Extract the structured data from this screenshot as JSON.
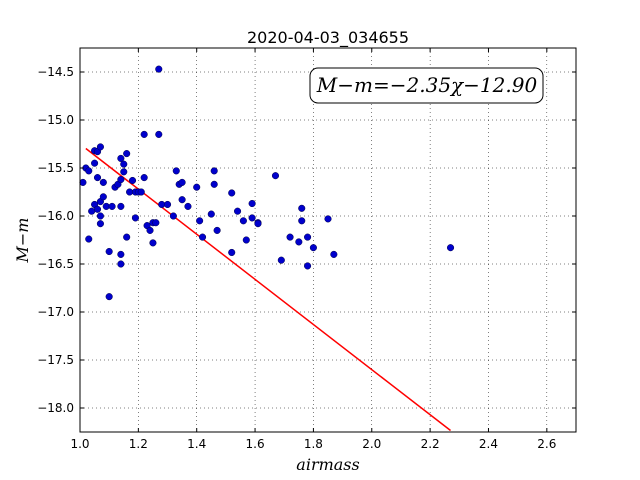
{
  "chart_data": {
    "type": "scatter",
    "title": "2020-04-03_034655",
    "xlabel": "airmass",
    "ylabel": "M−m",
    "xlim": [
      1.0,
      2.7
    ],
    "ylim": [
      -18.25,
      -14.25
    ],
    "xticks": [
      1.0,
      1.2,
      1.4,
      1.6,
      1.8,
      2.0,
      2.2,
      2.4,
      2.6
    ],
    "xtick_labels": [
      "1.0",
      "1.2",
      "1.4",
      "1.6",
      "1.8",
      "2.0",
      "2.2",
      "2.4",
      "2.6"
    ],
    "yticks": [
      -14.5,
      -15.0,
      -15.5,
      -16.0,
      -16.5,
      -17.0,
      -17.5,
      -18.0
    ],
    "ytick_labels": [
      "−14.5",
      "−15.0",
      "−15.5",
      "−16.0",
      "−16.5",
      "−17.0",
      "−17.5",
      "−18.0"
    ],
    "grid": true,
    "annotation": "M−m=−2.35χ−12.90",
    "annotation_position": "top-right",
    "point_color": "#0000cc",
    "line_color": "#ff0000",
    "fit": {
      "slope": -2.35,
      "intercept": -12.9,
      "x_range": [
        1.02,
        2.27
      ]
    },
    "points": [
      [
        1.01,
        -15.65
      ],
      [
        1.02,
        -15.5
      ],
      [
        1.03,
        -15.53
      ],
      [
        1.04,
        -15.95
      ],
      [
        1.03,
        -16.24
      ],
      [
        1.05,
        -15.32
      ],
      [
        1.06,
        -15.33
      ],
      [
        1.05,
        -15.45
      ],
      [
        1.07,
        -15.28
      ],
      [
        1.05,
        -15.88
      ],
      [
        1.06,
        -15.93
      ],
      [
        1.07,
        -15.85
      ],
      [
        1.06,
        -15.6
      ],
      [
        1.08,
        -15.8
      ],
      [
        1.08,
        -15.65
      ],
      [
        1.07,
        -16.0
      ],
      [
        1.07,
        -16.08
      ],
      [
        1.09,
        -15.9
      ],
      [
        1.11,
        -15.9
      ],
      [
        1.12,
        -15.7
      ],
      [
        1.13,
        -15.67
      ],
      [
        1.14,
        -15.62
      ],
      [
        1.14,
        -15.9
      ],
      [
        1.14,
        -15.4
      ],
      [
        1.15,
        -15.46
      ],
      [
        1.15,
        -15.54
      ],
      [
        1.16,
        -15.35
      ],
      [
        1.17,
        -15.75
      ],
      [
        1.18,
        -15.63
      ],
      [
        1.19,
        -15.75
      ],
      [
        1.2,
        -15.75
      ],
      [
        1.21,
        -15.75
      ],
      [
        1.19,
        -16.02
      ],
      [
        1.16,
        -16.22
      ],
      [
        1.14,
        -16.4
      ],
      [
        1.14,
        -16.5
      ],
      [
        1.1,
        -16.37
      ],
      [
        1.1,
        -16.84
      ],
      [
        1.22,
        -15.15
      ],
      [
        1.22,
        -15.6
      ],
      [
        1.23,
        -16.1
      ],
      [
        1.24,
        -16.15
      ],
      [
        1.25,
        -16.07
      ],
      [
        1.26,
        -16.07
      ],
      [
        1.25,
        -16.28
      ],
      [
        1.27,
        -15.15
      ],
      [
        1.28,
        -15.88
      ],
      [
        1.3,
        -15.88
      ],
      [
        1.32,
        -16.0
      ],
      [
        1.33,
        -15.53
      ],
      [
        1.34,
        -15.67
      ],
      [
        1.35,
        -15.65
      ],
      [
        1.35,
        -15.83
      ],
      [
        1.37,
        -15.9
      ],
      [
        1.27,
        -14.47
      ],
      [
        1.4,
        -15.7
      ],
      [
        1.41,
        -16.05
      ],
      [
        1.42,
        -16.22
      ],
      [
        1.45,
        -15.98
      ],
      [
        1.46,
        -15.53
      ],
      [
        1.46,
        -15.67
      ],
      [
        1.47,
        -16.15
      ],
      [
        1.52,
        -15.76
      ],
      [
        1.52,
        -16.38
      ],
      [
        1.54,
        -15.95
      ],
      [
        1.56,
        -16.05
      ],
      [
        1.57,
        -16.25
      ],
      [
        1.59,
        -15.87
      ],
      [
        1.59,
        -16.02
      ],
      [
        1.61,
        -16.07
      ],
      [
        1.61,
        -16.08
      ],
      [
        1.67,
        -15.58
      ],
      [
        1.69,
        -16.46
      ],
      [
        1.72,
        -16.22
      ],
      [
        1.75,
        -16.27
      ],
      [
        1.76,
        -15.92
      ],
      [
        1.76,
        -16.05
      ],
      [
        1.78,
        -16.22
      ],
      [
        1.78,
        -16.52
      ],
      [
        1.8,
        -16.33
      ],
      [
        1.85,
        -16.03
      ],
      [
        1.87,
        -16.4
      ],
      [
        2.27,
        -16.33
      ]
    ]
  }
}
